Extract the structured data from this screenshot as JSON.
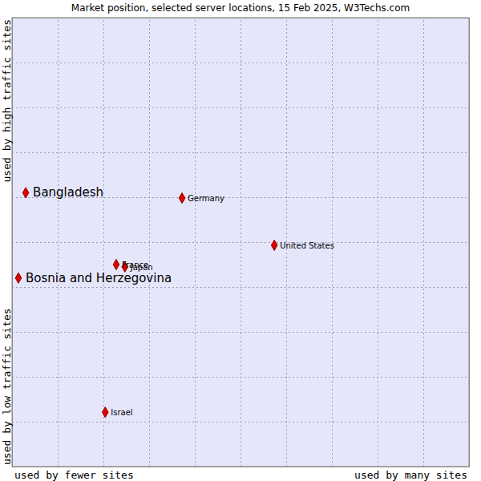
{
  "chart_data": {
    "type": "scatter",
    "title": "Market position, selected server locations, 15 Feb 2025, W3Techs.com",
    "x_labels": [
      "used by fewer sites",
      "used by many sites"
    ],
    "y_labels": [
      "used by low traffic sites",
      "used by high traffic sites"
    ],
    "xlim": [
      0,
      10
    ],
    "ylim": [
      0,
      10
    ],
    "xticks": [
      1,
      2,
      3,
      4,
      5,
      6,
      7,
      8,
      9
    ],
    "yticks": [
      1,
      2,
      3,
      4,
      5,
      6,
      7,
      8,
      9
    ],
    "grid": true,
    "tick_labels": false,
    "color": "#e00000",
    "series": [
      {
        "marker": "diamond-large",
        "labels": [
          "Bangladesh",
          "Bosnia and Herzegovina"
        ],
        "x": [
          0.3,
          0.14
        ],
        "values": [
          6.1,
          4.2
        ]
      },
      {
        "marker": "diamond",
        "labels": [
          "Germany",
          "United States",
          "France",
          "Japan",
          "Israel"
        ],
        "x": [
          3.72,
          5.74,
          2.28,
          2.47,
          2.04
        ],
        "values": [
          5.98,
          4.93,
          4.5,
          4.45,
          1.21
        ]
      }
    ]
  }
}
